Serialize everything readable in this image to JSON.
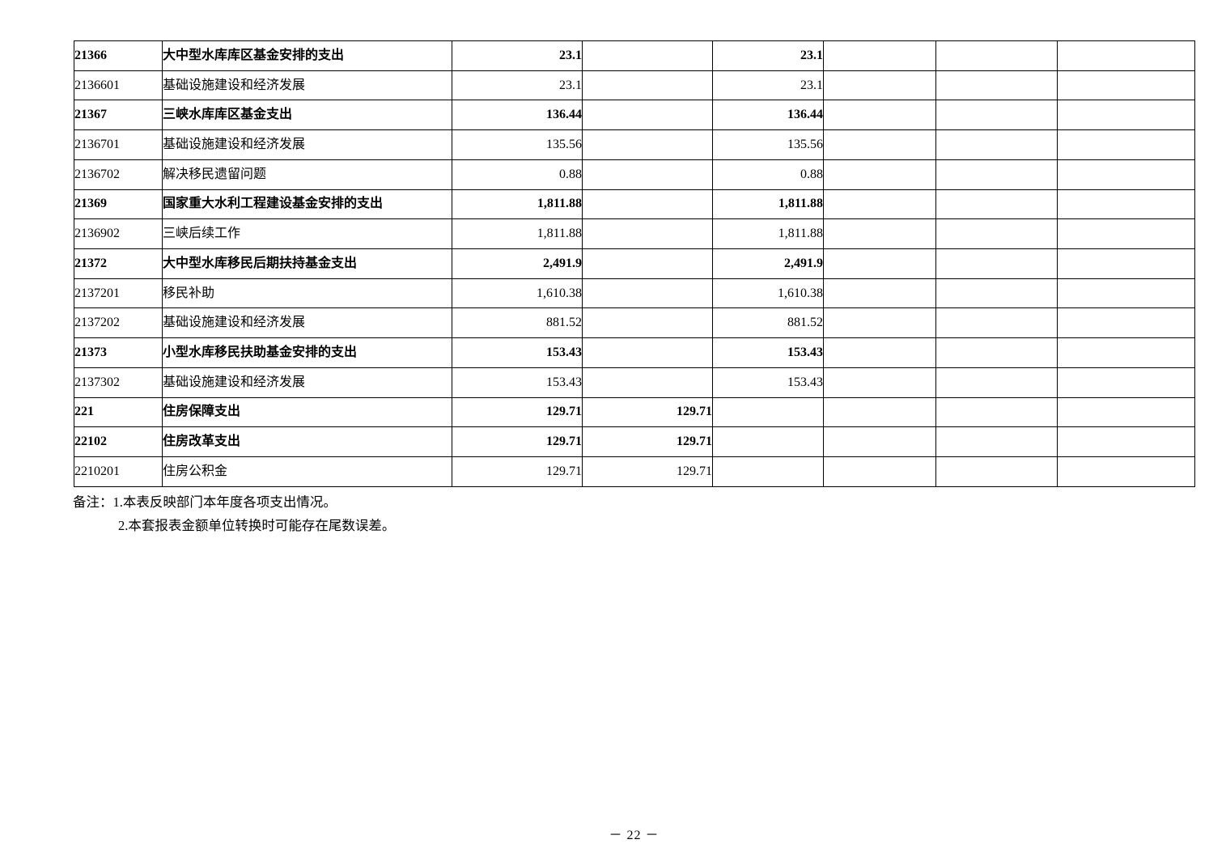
{
  "table": {
    "rows": [
      {
        "bold": true,
        "cells": [
          "21366",
          "大中型水库库区基金安排的支出",
          "23.1",
          "",
          "23.1",
          "",
          "",
          ""
        ]
      },
      {
        "bold": false,
        "cells": [
          "2136601",
          "基础设施建设和经济发展",
          "23.1",
          "",
          "23.1",
          "",
          "",
          ""
        ]
      },
      {
        "bold": true,
        "cells": [
          "21367",
          "三峡水库库区基金支出",
          "136.44",
          "",
          "136.44",
          "",
          "",
          ""
        ]
      },
      {
        "bold": false,
        "cells": [
          "2136701",
          "基础设施建设和经济发展",
          "135.56",
          "",
          "135.56",
          "",
          "",
          ""
        ]
      },
      {
        "bold": false,
        "cells": [
          "2136702",
          "解决移民遗留问题",
          "0.88",
          "",
          "0.88",
          "",
          "",
          ""
        ]
      },
      {
        "bold": true,
        "cells": [
          "21369",
          "国家重大水利工程建设基金安排的支出",
          "1,811.88",
          "",
          "1,811.88",
          "",
          "",
          ""
        ]
      },
      {
        "bold": false,
        "cells": [
          "2136902",
          "三峡后续工作",
          "1,811.88",
          "",
          "1,811.88",
          "",
          "",
          ""
        ]
      },
      {
        "bold": true,
        "cells": [
          "21372",
          "大中型水库移民后期扶持基金支出",
          "2,491.9",
          "",
          "2,491.9",
          "",
          "",
          ""
        ]
      },
      {
        "bold": false,
        "cells": [
          "2137201",
          "移民补助",
          "1,610.38",
          "",
          "1,610.38",
          "",
          "",
          ""
        ]
      },
      {
        "bold": false,
        "cells": [
          "2137202",
          "基础设施建设和经济发展",
          "881.52",
          "",
          "881.52",
          "",
          "",
          ""
        ]
      },
      {
        "bold": true,
        "cells": [
          "21373",
          "小型水库移民扶助基金安排的支出",
          "153.43",
          "",
          "153.43",
          "",
          "",
          ""
        ]
      },
      {
        "bold": false,
        "cells": [
          "2137302",
          "基础设施建设和经济发展",
          "153.43",
          "",
          "153.43",
          "",
          "",
          ""
        ]
      },
      {
        "bold": true,
        "cells": [
          "221",
          "住房保障支出",
          "129.71",
          "129.71",
          "",
          "",
          "",
          ""
        ]
      },
      {
        "bold": true,
        "cells": [
          "22102",
          "住房改革支出",
          "129.71",
          "129.71",
          "",
          "",
          "",
          ""
        ]
      },
      {
        "bold": false,
        "cells": [
          "2210201",
          "住房公积金",
          "129.71",
          "129.71",
          "",
          "",
          "",
          ""
        ]
      }
    ]
  },
  "notes": {
    "label": "备注：",
    "line1": "1.本表反映部门本年度各项支出情况。",
    "line2": "2.本套报表金额单位转换时可能存在尾数误差。"
  },
  "footer": {
    "page_number": "－ 22 －"
  }
}
